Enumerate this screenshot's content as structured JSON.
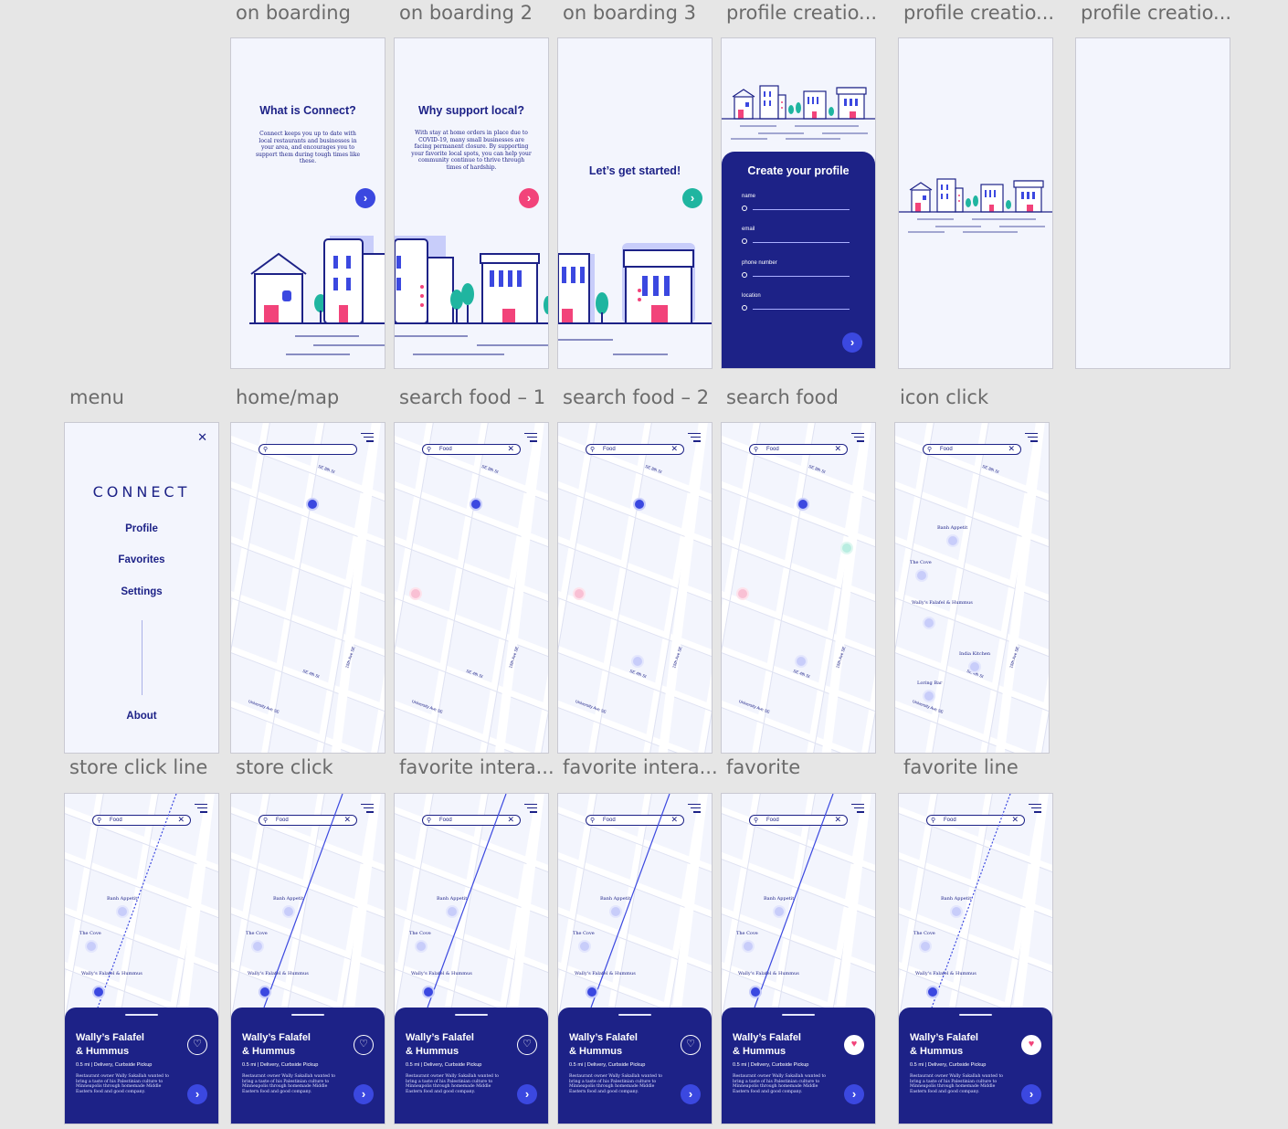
{
  "labels": {
    "onboarding1": "on boarding",
    "onboarding2": "on boarding 2",
    "onboarding3": "on boarding 3",
    "profile1": "profile creatio...",
    "profile2": "profile creatio...",
    "profile3": "profile creatio...",
    "menu": "menu",
    "homemap": "home/map",
    "search1": "search food – 1",
    "search2": "search food – 2",
    "search3": "search food",
    "iconclick": "icon click",
    "storeline": "store click line",
    "storeclick": "store click",
    "favint1": "favorite intera...",
    "favint2": "favorite intera...",
    "favorite": "favorite",
    "favline": "favorite line"
  },
  "onboarding": {
    "one": {
      "title": "What is Connect?",
      "body": "Connect keeps you up to date with local restaurants and businesses in your area, and encourages you to support them during tough times like these."
    },
    "two": {
      "title": "Why support local?",
      "body": "With stay at home orders in place due to COVID-19, many small businesses are facing permanent closure. By supporting your favorite local spots, you can help your community continue to thrive through times of hardship."
    },
    "three": {
      "title": "Let’s get started!"
    },
    "next_glyph": "›",
    "colors": {
      "blue": "#3b48e0",
      "pink": "#f2437a",
      "teal": "#1fb5a0"
    }
  },
  "profile": {
    "title": "Create your profile",
    "fields": [
      "name",
      "email",
      "phone number",
      "location"
    ]
  },
  "menu": {
    "close": "✕",
    "logo": "CONNECT",
    "items": [
      "Profile",
      "Favorites",
      "Settings"
    ],
    "about": "About"
  },
  "map": {
    "search_value": "Food",
    "clear": "✕",
    "search_glyph": "⚲",
    "streets": {
      "s1": "SE 8th St",
      "s2": "SE 4th St",
      "s3": "15th Ave SE",
      "s4": "University Ave SE"
    },
    "places": {
      "banh": "Banh Appetit",
      "cove": "The Cove",
      "wally": "Wally's Falafel & Hummus",
      "india": "India Kitchen",
      "loring": "Loring Bar"
    }
  },
  "store": {
    "name": "Wally’s Falafel & Hummus",
    "name_line1": "Wally’s Falafel",
    "name_line2": "& Hummus",
    "meta": "0.5 mi | Delivery, Curbside Pickup",
    "description": "Restaurant owner Wally Sakallah wanted to bring a taste of his Palestinian culture to Minneapolis through homemade Middle Eastern food and good company.",
    "heart_empty": "♡",
    "heart_full": "♥",
    "go": "›"
  }
}
